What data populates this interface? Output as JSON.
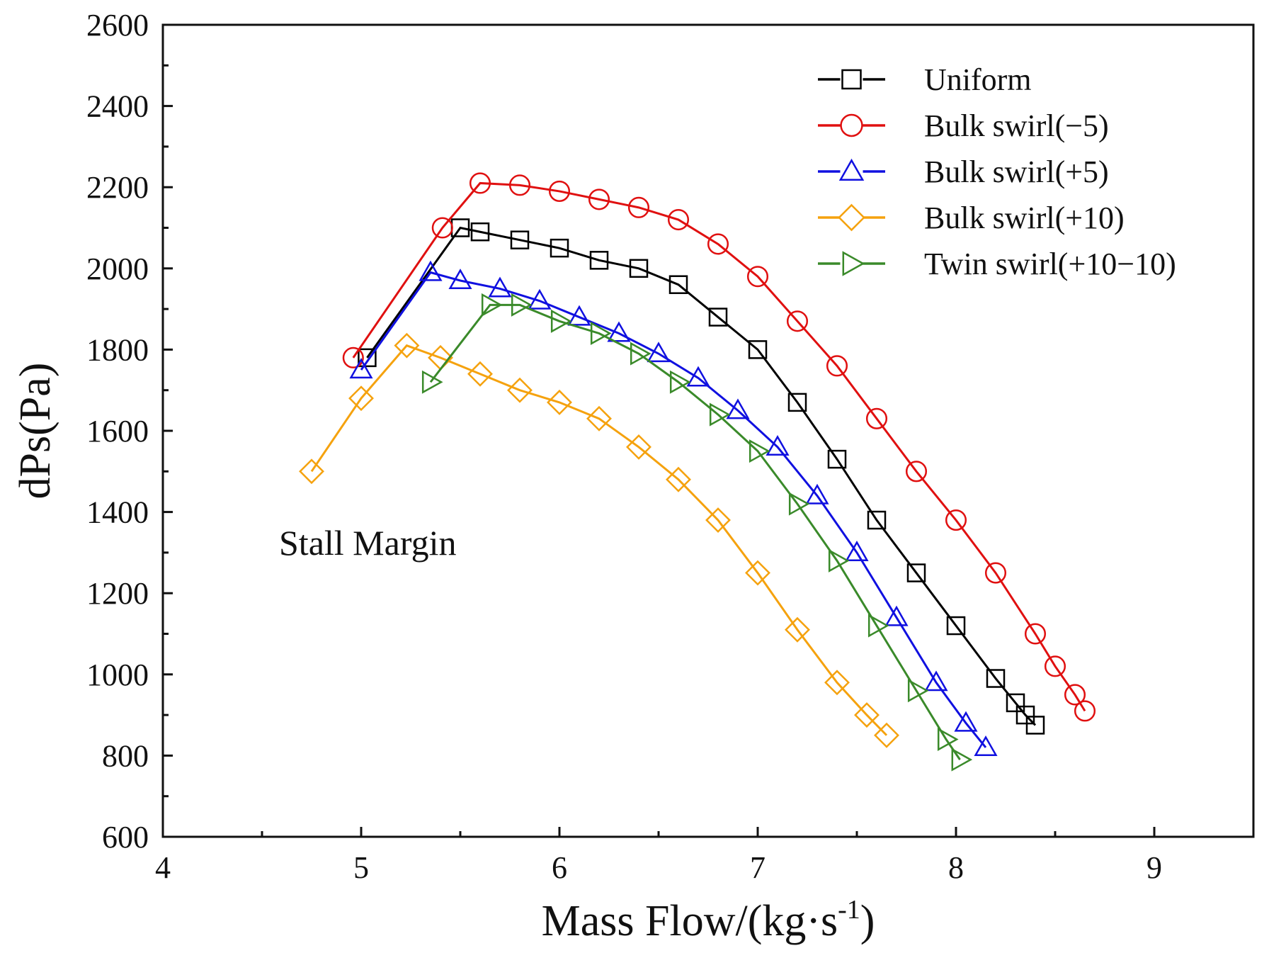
{
  "chart_data": {
    "type": "line",
    "title": "",
    "xlabel": "Mass Flow/(kg·s",
    "xlabel_sup": "-1",
    "xlabel_suffix": ")",
    "ylabel": "dPs(Pa)",
    "xlim": [
      4,
      9.5
    ],
    "ylim": [
      600,
      2600
    ],
    "xticks": [
      4,
      5,
      6,
      7,
      8,
      9
    ],
    "yticks": [
      600,
      800,
      1000,
      1200,
      1400,
      1600,
      1800,
      2000,
      2200,
      2400,
      2600
    ],
    "xtick_labels": [
      "4",
      "5",
      "6",
      "7",
      "8",
      "9"
    ],
    "ytick_labels": [
      "600",
      "800",
      "1000",
      "1200",
      "1400",
      "1600",
      "1800",
      "2000",
      "2200",
      "2400",
      "2600"
    ],
    "grid": false,
    "legend_position": "top-right",
    "annotations": [
      {
        "text": "Stall Margin",
        "x": 4.6,
        "y": 1320
      }
    ],
    "series": [
      {
        "name": "Uniform",
        "color": "#000000",
        "marker": "square",
        "x": [
          5.03,
          5.5,
          5.6,
          5.8,
          6.0,
          6.2,
          6.4,
          6.6,
          6.8,
          7.0,
          7.2,
          7.4,
          7.6,
          7.8,
          8.0,
          8.2,
          8.3,
          8.35,
          8.4
        ],
        "y": [
          1780,
          2100,
          2090,
          2070,
          2050,
          2020,
          2000,
          1960,
          1880,
          1800,
          1670,
          1530,
          1380,
          1250,
          1120,
          990,
          930,
          900,
          875
        ]
      },
      {
        "name": "Bulk swirl(−5)",
        "color": "#e01010",
        "marker": "circle",
        "x": [
          4.96,
          5.41,
          5.6,
          5.8,
          6.0,
          6.2,
          6.4,
          6.6,
          6.8,
          7.0,
          7.2,
          7.4,
          7.6,
          7.8,
          8.0,
          8.2,
          8.4,
          8.5,
          8.6,
          8.65
        ],
        "y": [
          1780,
          2100,
          2210,
          2205,
          2190,
          2170,
          2150,
          2120,
          2060,
          1980,
          1870,
          1760,
          1630,
          1500,
          1380,
          1250,
          1100,
          1020,
          950,
          910
        ]
      },
      {
        "name": "Bulk swirl(+5)",
        "color": "#1010e0",
        "marker": "triangle-up",
        "x": [
          5.0,
          5.35,
          5.5,
          5.7,
          5.9,
          6.1,
          6.3,
          6.5,
          6.7,
          6.9,
          7.1,
          7.3,
          7.5,
          7.7,
          7.9,
          8.05,
          8.15
        ],
        "y": [
          1750,
          1990,
          1970,
          1950,
          1920,
          1880,
          1840,
          1790,
          1730,
          1650,
          1560,
          1440,
          1300,
          1140,
          980,
          880,
          820
        ]
      },
      {
        "name": "Bulk swirl(+10)",
        "color": "#f5a20e",
        "marker": "diamond",
        "x": [
          4.75,
          5.0,
          5.23,
          5.4,
          5.6,
          5.8,
          6.0,
          6.2,
          6.4,
          6.6,
          6.8,
          7.0,
          7.2,
          7.4,
          7.55,
          7.65
        ],
        "y": [
          1500,
          1680,
          1810,
          1780,
          1740,
          1700,
          1670,
          1630,
          1560,
          1480,
          1380,
          1250,
          1110,
          980,
          900,
          850
        ]
      },
      {
        "name": "Twin swirl(+10−10)",
        "color": "#3a8a2a",
        "marker": "triangle-right",
        "x": [
          5.35,
          5.65,
          5.8,
          6.0,
          6.2,
          6.4,
          6.6,
          6.8,
          7.0,
          7.2,
          7.4,
          7.6,
          7.8,
          7.95,
          8.02
        ],
        "y": [
          1720,
          1910,
          1910,
          1870,
          1840,
          1790,
          1720,
          1640,
          1550,
          1420,
          1280,
          1120,
          960,
          840,
          790
        ]
      }
    ]
  }
}
